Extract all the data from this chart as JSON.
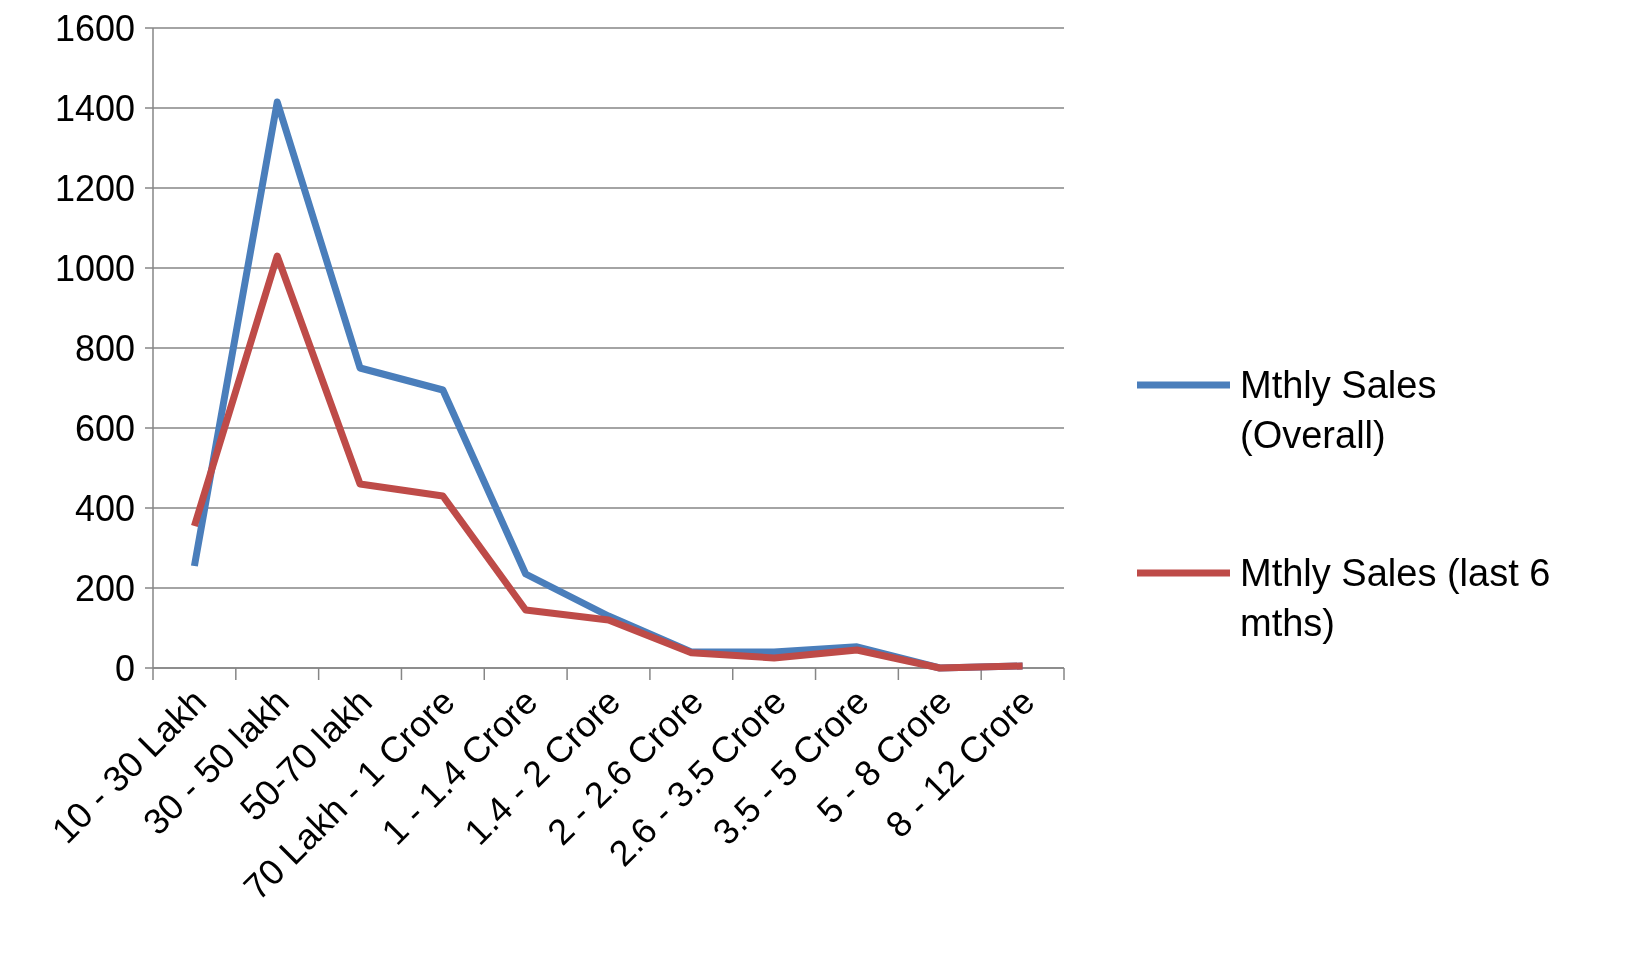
{
  "chart_data": {
    "type": "line",
    "categories": [
      "10 - 30 Lakh",
      "30 - 50 lakh",
      "50-70 lakh",
      "70 Lakh - 1 Crore",
      "1 - 1.4 Crore",
      "1.4 - 2 Crore",
      "2 - 2.6 Crore",
      "2.6 - 3.5 Crore",
      "3.5 - 5 Crore",
      "5 - 8 Crore",
      "8 - 12 Crore"
    ],
    "series": [
      {
        "name": "Mthly Sales (Overall)",
        "color": "#4a7ebb",
        "values": [
          255,
          1415,
          750,
          695,
          235,
          130,
          40,
          40,
          53,
          0,
          5
        ]
      },
      {
        "name": "Mthly Sales (last 6 mths)",
        "color": "#be4b48",
        "values": [
          355,
          1030,
          460,
          430,
          145,
          120,
          38,
          25,
          45,
          0,
          5
        ]
      }
    ],
    "ylim": [
      0,
      1600
    ],
    "yticks": [
      0,
      200,
      400,
      600,
      800,
      1000,
      1200,
      1400,
      1600
    ],
    "grid": "y",
    "legend": "right",
    "marker": "none",
    "line_style": "solid"
  }
}
